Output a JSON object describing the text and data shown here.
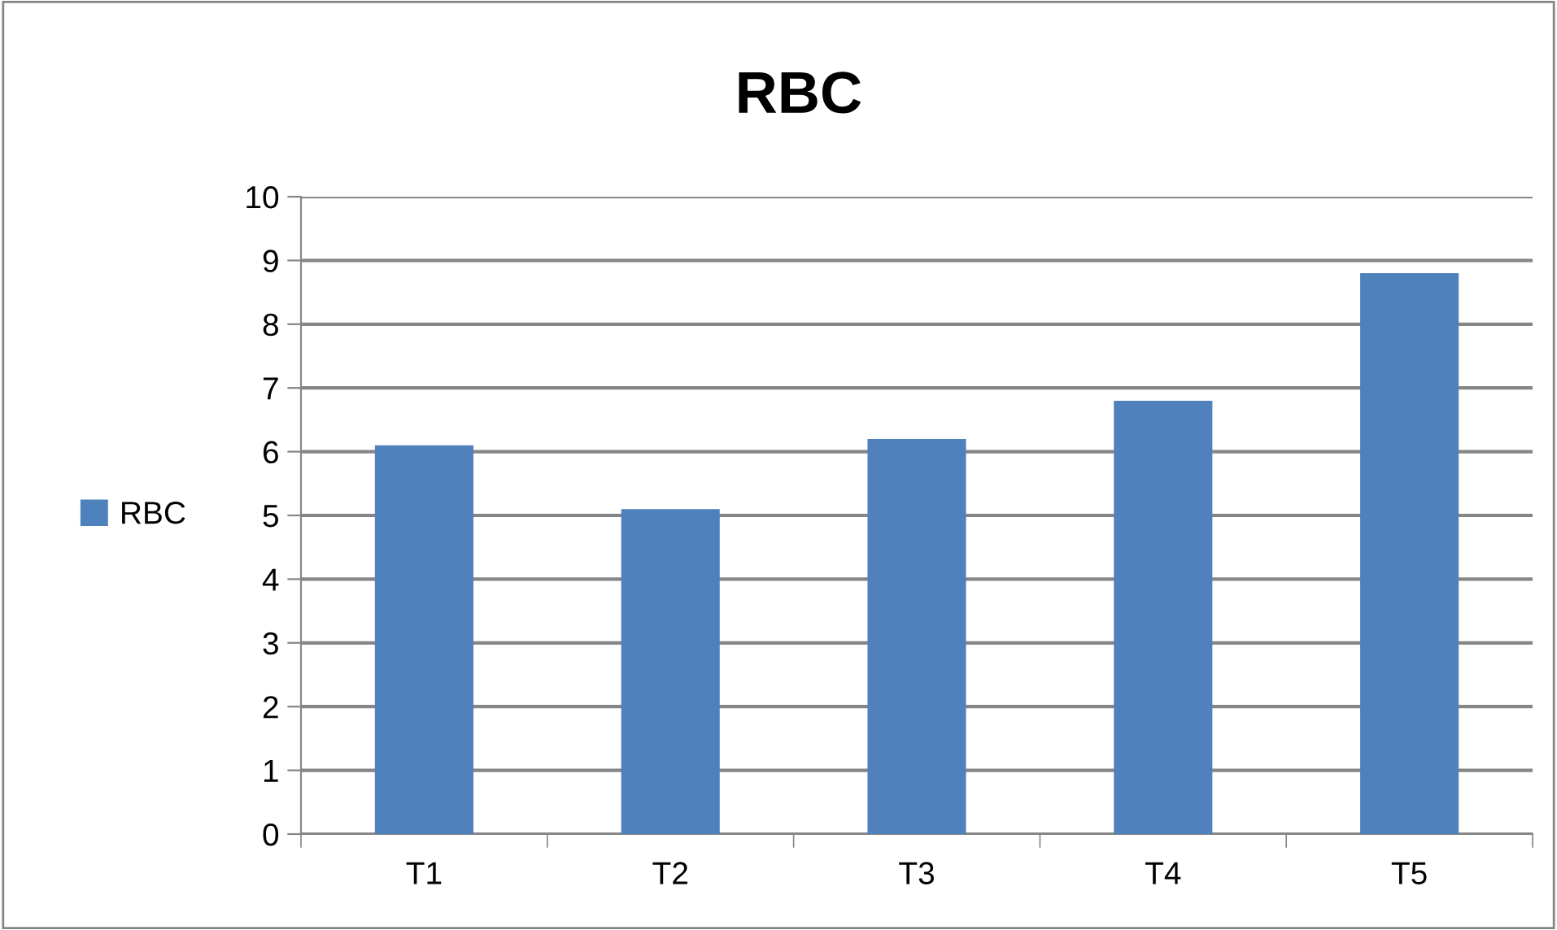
{
  "chart_data": {
    "type": "bar",
    "title": "RBC",
    "categories": [
      "T1",
      "T2",
      "T3",
      "T4",
      "T5"
    ],
    "series": [
      {
        "name": "RBC",
        "color": "#4f81bd",
        "values": [
          6.1,
          5.1,
          6.2,
          6.8,
          8.8
        ]
      }
    ],
    "ylim": [
      0,
      10
    ],
    "yticks": [
      0,
      1,
      2,
      3,
      4,
      5,
      6,
      7,
      8,
      9,
      10
    ],
    "grid": "y",
    "legend": "left"
  }
}
